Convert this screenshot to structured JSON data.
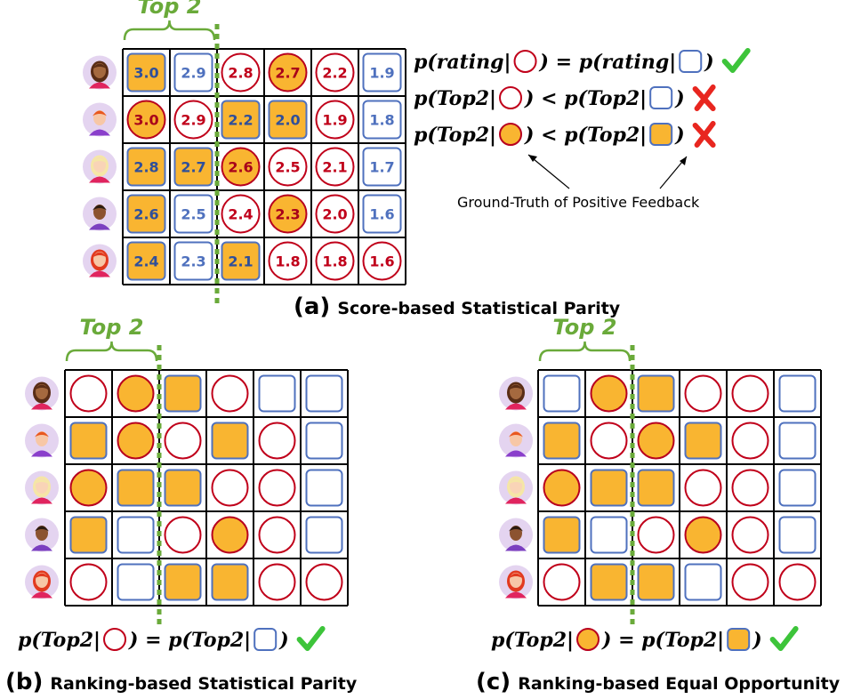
{
  "colors": {
    "filled": "#F9B531",
    "red_outline": "#C0001A",
    "blue_outline": "#4F71BE",
    "grid": "#000000",
    "green": "#6AAA3A",
    "check": "#3DC43A",
    "cross": "#E8261F"
  },
  "top_label": "Top 2",
  "panels": [
    {
      "id": "a",
      "caption_tag": "(a)",
      "caption": "Score-based Statistical Parity",
      "users": [
        "avatar-woman-dark-hair",
        "avatar-man-red-hair",
        "avatar-woman-blonde",
        "avatar-man-dark-skin",
        "avatar-woman-red-hair"
      ],
      "rows": [
        [
          {
            "s": "square",
            "f": 1,
            "v": "3.0"
          },
          {
            "s": "square",
            "f": 0,
            "v": "2.9"
          },
          {
            "s": "circle",
            "f": 0,
            "v": "2.8"
          },
          {
            "s": "circle",
            "f": 1,
            "v": "2.7"
          },
          {
            "s": "circle",
            "f": 0,
            "v": "2.2"
          },
          {
            "s": "square",
            "f": 0,
            "v": "1.9"
          }
        ],
        [
          {
            "s": "circle",
            "f": 1,
            "v": "3.0"
          },
          {
            "s": "circle",
            "f": 0,
            "v": "2.9"
          },
          {
            "s": "square",
            "f": 1,
            "v": "2.2"
          },
          {
            "s": "square",
            "f": 1,
            "v": "2.0"
          },
          {
            "s": "circle",
            "f": 0,
            "v": "1.9"
          },
          {
            "s": "square",
            "f": 0,
            "v": "1.8"
          }
        ],
        [
          {
            "s": "square",
            "f": 1,
            "v": "2.8"
          },
          {
            "s": "square",
            "f": 1,
            "v": "2.7"
          },
          {
            "s": "circle",
            "f": 1,
            "v": "2.6"
          },
          {
            "s": "circle",
            "f": 0,
            "v": "2.5"
          },
          {
            "s": "circle",
            "f": 0,
            "v": "2.1"
          },
          {
            "s": "square",
            "f": 0,
            "v": "1.7"
          }
        ],
        [
          {
            "s": "square",
            "f": 1,
            "v": "2.6"
          },
          {
            "s": "square",
            "f": 0,
            "v": "2.5"
          },
          {
            "s": "circle",
            "f": 0,
            "v": "2.4"
          },
          {
            "s": "circle",
            "f": 1,
            "v": "2.3"
          },
          {
            "s": "circle",
            "f": 0,
            "v": "2.0"
          },
          {
            "s": "square",
            "f": 0,
            "v": "1.6"
          }
        ],
        [
          {
            "s": "square",
            "f": 1,
            "v": "2.4"
          },
          {
            "s": "square",
            "f": 0,
            "v": "2.3"
          },
          {
            "s": "square",
            "f": 1,
            "v": "2.1"
          },
          {
            "s": "circle",
            "f": 0,
            "v": "1.8"
          },
          {
            "s": "circle",
            "f": 0,
            "v": "1.8"
          },
          {
            "s": "circle",
            "f": 0,
            "v": "1.6"
          }
        ]
      ],
      "formulas": [
        {
          "lhs": "p(rating|",
          "lshape": "circle",
          "lfill": 0,
          "op": ") = p(rating|",
          "rshape": "square",
          "rfill": 0,
          "end": ")",
          "mark": "check"
        },
        {
          "lhs": "p(Top2|",
          "lshape": "circle",
          "lfill": 0,
          "op": ") < p(Top2|",
          "rshape": "square",
          "rfill": 0,
          "end": ")",
          "mark": "cross"
        },
        {
          "lhs": "p(Top2|",
          "lshape": "circle",
          "lfill": 1,
          "op": ") < p(Top2|",
          "rshape": "square",
          "rfill": 1,
          "end": ")",
          "mark": "cross"
        }
      ],
      "annotation": "Ground-Truth of Positive Feedback"
    },
    {
      "id": "b",
      "caption_tag": "(b)",
      "caption": "Ranking-based Statistical Parity",
      "users": [
        "avatar-woman-dark-hair",
        "avatar-man-red-hair",
        "avatar-woman-blonde",
        "avatar-man-dark-skin",
        "avatar-woman-red-hair"
      ],
      "rows": [
        [
          {
            "s": "circle",
            "f": 0
          },
          {
            "s": "circle",
            "f": 1
          },
          {
            "s": "square",
            "f": 1
          },
          {
            "s": "circle",
            "f": 0
          },
          {
            "s": "square",
            "f": 0
          },
          {
            "s": "square",
            "f": 0
          }
        ],
        [
          {
            "s": "square",
            "f": 1
          },
          {
            "s": "circle",
            "f": 1
          },
          {
            "s": "circle",
            "f": 0
          },
          {
            "s": "square",
            "f": 1
          },
          {
            "s": "circle",
            "f": 0
          },
          {
            "s": "square",
            "f": 0
          }
        ],
        [
          {
            "s": "circle",
            "f": 1
          },
          {
            "s": "square",
            "f": 1
          },
          {
            "s": "square",
            "f": 1
          },
          {
            "s": "circle",
            "f": 0
          },
          {
            "s": "circle",
            "f": 0
          },
          {
            "s": "square",
            "f": 0
          }
        ],
        [
          {
            "s": "square",
            "f": 1
          },
          {
            "s": "square",
            "f": 0
          },
          {
            "s": "circle",
            "f": 0
          },
          {
            "s": "circle",
            "f": 1
          },
          {
            "s": "circle",
            "f": 0
          },
          {
            "s": "square",
            "f": 0
          }
        ],
        [
          {
            "s": "circle",
            "f": 0
          },
          {
            "s": "square",
            "f": 0
          },
          {
            "s": "square",
            "f": 1
          },
          {
            "s": "square",
            "f": 1
          },
          {
            "s": "circle",
            "f": 0
          },
          {
            "s": "circle",
            "f": 0
          }
        ]
      ],
      "formula": {
        "lhs": "p(Top2|",
        "lshape": "circle",
        "lfill": 0,
        "op": ") = p(Top2|",
        "rshape": "square",
        "rfill": 0,
        "end": ")",
        "mark": "check"
      }
    },
    {
      "id": "c",
      "caption_tag": "(c)",
      "caption": "Ranking-based Equal Opportunity",
      "users": [
        "avatar-woman-dark-hair",
        "avatar-man-red-hair",
        "avatar-woman-blonde",
        "avatar-man-dark-skin",
        "avatar-woman-red-hair"
      ],
      "rows": [
        [
          {
            "s": "square",
            "f": 0
          },
          {
            "s": "circle",
            "f": 1
          },
          {
            "s": "square",
            "f": 1
          },
          {
            "s": "circle",
            "f": 0
          },
          {
            "s": "circle",
            "f": 0
          },
          {
            "s": "square",
            "f": 0
          }
        ],
        [
          {
            "s": "square",
            "f": 1
          },
          {
            "s": "circle",
            "f": 0
          },
          {
            "s": "circle",
            "f": 1
          },
          {
            "s": "square",
            "f": 1
          },
          {
            "s": "circle",
            "f": 0
          },
          {
            "s": "square",
            "f": 0
          }
        ],
        [
          {
            "s": "circle",
            "f": 1
          },
          {
            "s": "square",
            "f": 1
          },
          {
            "s": "square",
            "f": 1
          },
          {
            "s": "circle",
            "f": 0
          },
          {
            "s": "circle",
            "f": 0
          },
          {
            "s": "square",
            "f": 0
          }
        ],
        [
          {
            "s": "square",
            "f": 1
          },
          {
            "s": "square",
            "f": 0
          },
          {
            "s": "circle",
            "f": 0
          },
          {
            "s": "circle",
            "f": 1
          },
          {
            "s": "circle",
            "f": 0
          },
          {
            "s": "square",
            "f": 0
          }
        ],
        [
          {
            "s": "circle",
            "f": 0
          },
          {
            "s": "square",
            "f": 1
          },
          {
            "s": "square",
            "f": 1
          },
          {
            "s": "square",
            "f": 0
          },
          {
            "s": "circle",
            "f": 0
          },
          {
            "s": "circle",
            "f": 0
          }
        ]
      ],
      "formula": {
        "lhs": "p(Top2|",
        "lshape": "circle",
        "lfill": 1,
        "op": ") = p(Top2|",
        "rshape": "square",
        "rfill": 1,
        "end": ")",
        "mark": "check"
      }
    }
  ]
}
